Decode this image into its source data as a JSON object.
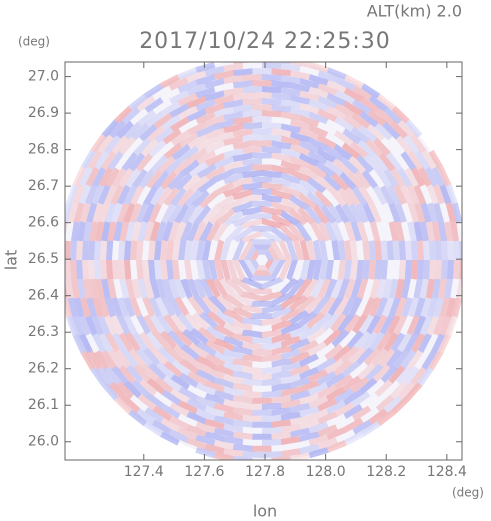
{
  "chart_data": {
    "type": "radar-ppi",
    "title": "2017/10/24 22:25:30",
    "subtitle": "ALT(km) 2.0",
    "x_label": "lon",
    "y_label": "lat",
    "x_unit": "(deg)",
    "y_unit": "(deg)",
    "xlim": [
      127.14,
      128.45
    ],
    "ylim": [
      25.95,
      27.04
    ],
    "xticks": [
      127.4,
      127.6,
      127.8,
      {
        "value": 128.0,
        "label": "128.0"
      },
      128.2,
      128.4
    ],
    "yticks": [
      {
        "value": 26.0,
        "label": "26.0"
      },
      26.1,
      26.2,
      26.3,
      26.4,
      26.5,
      26.6,
      26.7,
      26.8,
      26.9,
      {
        "value": 27.0,
        "label": "27.0"
      }
    ]
  }
}
